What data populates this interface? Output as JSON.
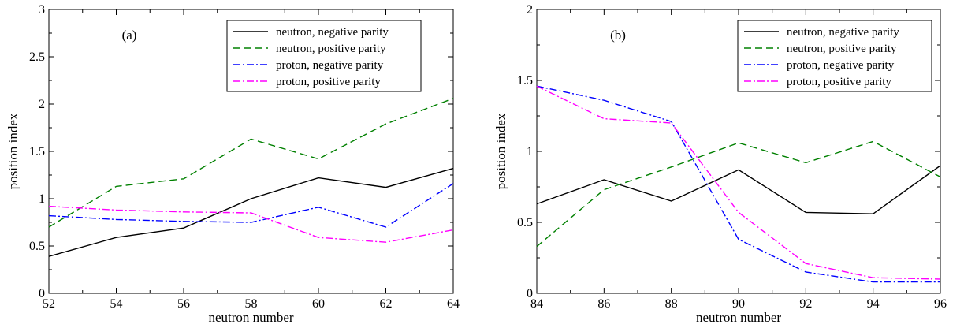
{
  "chart_data": [
    {
      "type": "line",
      "panel_label": "(a)",
      "xlabel": "neutron number",
      "ylabel": "position index",
      "xlim": [
        52,
        64
      ],
      "ylim": [
        0,
        3
      ],
      "xticks": [
        52,
        54,
        56,
        58,
        60,
        62,
        64
      ],
      "yticks": [
        0,
        0.5,
        1,
        1.5,
        2,
        2.5,
        3
      ],
      "ytick_labels": [
        "0",
        "0.5",
        "1",
        "1.5",
        "2",
        "2.5",
        "3"
      ],
      "legend_position": "top-right",
      "x": [
        52,
        54,
        56,
        58,
        60,
        62,
        64
      ],
      "series": [
        {
          "name": "neutron, negative parity",
          "color": "#000000",
          "dash": "solid",
          "values": [
            0.39,
            0.59,
            0.69,
            1.0,
            1.22,
            1.12,
            1.32
          ]
        },
        {
          "name": "neutron, positive parity",
          "color": "#008000",
          "dash": "dashed",
          "values": [
            0.7,
            1.13,
            1.21,
            1.63,
            1.42,
            1.79,
            2.06
          ]
        },
        {
          "name": "proton, negative parity",
          "color": "#0000ff",
          "dash": "dashdot",
          "values": [
            0.82,
            0.78,
            0.76,
            0.75,
            0.91,
            0.7,
            1.16
          ]
        },
        {
          "name": "proton, positive parity",
          "color": "#ff00ff",
          "dash": "dashdot",
          "values": [
            0.92,
            0.88,
            0.86,
            0.85,
            0.59,
            0.54,
            0.67
          ]
        }
      ]
    },
    {
      "type": "line",
      "panel_label": "(b)",
      "xlabel": "neutron number",
      "ylabel": "position index",
      "xlim": [
        84,
        96
      ],
      "ylim": [
        0,
        2
      ],
      "xticks": [
        84,
        86,
        88,
        90,
        92,
        94,
        96
      ],
      "yticks": [
        0,
        0.5,
        1,
        1.5,
        2
      ],
      "ytick_labels": [
        "0",
        "0.5",
        "1",
        "1.5",
        "2"
      ],
      "legend_position": "top-right",
      "x": [
        84,
        86,
        88,
        90,
        92,
        94,
        96
      ],
      "series": [
        {
          "name": "neutron, negative parity",
          "color": "#000000",
          "dash": "solid",
          "values": [
            0.63,
            0.8,
            0.65,
            0.87,
            0.57,
            0.56,
            0.9
          ]
        },
        {
          "name": "neutron, positive parity",
          "color": "#008000",
          "dash": "dashed",
          "values": [
            0.33,
            0.73,
            0.89,
            1.06,
            0.92,
            1.07,
            0.82
          ]
        },
        {
          "name": "proton, negative parity",
          "color": "#0000ff",
          "dash": "dashdot",
          "values": [
            1.46,
            1.36,
            1.21,
            0.38,
            0.15,
            0.08,
            0.08
          ]
        },
        {
          "name": "proton, positive parity",
          "color": "#ff00ff",
          "dash": "dashdot",
          "values": [
            1.46,
            1.23,
            1.2,
            0.57,
            0.21,
            0.11,
            0.1
          ]
        }
      ]
    }
  ]
}
